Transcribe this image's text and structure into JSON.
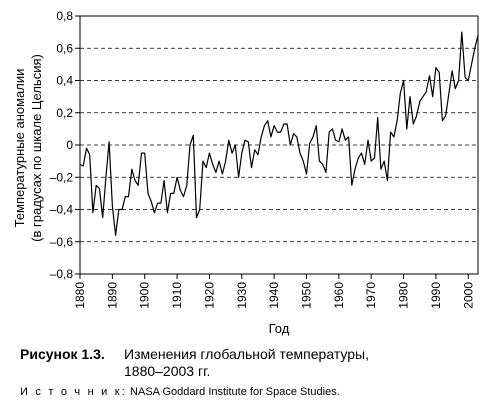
{
  "caption": {
    "number": "Рисунок 1.3.",
    "text": "Изменения глобальной температуры, 1880–2003 гг."
  },
  "source": {
    "label": "И с т о ч н и к:",
    "text": "NASA Goddard Institute for Space Studies."
  },
  "chart_data": {
    "type": "line",
    "title": "",
    "xlabel": "Год",
    "ylabel": "Температурные аномалии",
    "ylabel2": "(в градусах по шкале Цельсия)",
    "xlim": [
      1880,
      2003
    ],
    "ylim": [
      -0.8,
      0.8
    ],
    "xticks": [
      1880,
      1890,
      1900,
      1910,
      1920,
      1930,
      1940,
      1950,
      1960,
      1970,
      1980,
      1990,
      2000
    ],
    "yticks": [
      -0.8,
      -0.6,
      -0.4,
      -0.2,
      0,
      0.2,
      0.4,
      0.6,
      0.8
    ],
    "ytick_labels": [
      "–0,8",
      "–0,6",
      "–0,4",
      "–0,2",
      "0",
      "0,2",
      "0,4",
      "0,6",
      "0,8"
    ],
    "grid": "horizontal dashed",
    "series": [
      {
        "x": [
          1880,
          1881,
          1882,
          1883,
          1884,
          1885,
          1886,
          1887,
          1888,
          1889,
          1890,
          1891,
          1892,
          1893,
          1894,
          1895,
          1896,
          1897,
          1898,
          1899,
          1900,
          1901,
          1902,
          1903,
          1904,
          1905,
          1906,
          1907,
          1908,
          1909,
          1910,
          1911,
          1912,
          1913,
          1914,
          1915,
          1916,
          1917,
          1918,
          1919,
          1920,
          1921,
          1922,
          1923,
          1924,
          1925,
          1926,
          1927,
          1928,
          1929,
          1930,
          1931,
          1932,
          1933,
          1934,
          1935,
          1936,
          1937,
          1938,
          1939,
          1940,
          1941,
          1942,
          1943,
          1944,
          1945,
          1946,
          1947,
          1948,
          1949,
          1950,
          1951,
          1952,
          1953,
          1954,
          1955,
          1956,
          1957,
          1958,
          1959,
          1960,
          1961,
          1962,
          1963,
          1964,
          1965,
          1966,
          1967,
          1968,
          1969,
          1970,
          1971,
          1972,
          1973,
          1974,
          1975,
          1976,
          1977,
          1978,
          1979,
          1980,
          1981,
          1982,
          1983,
          1984,
          1985,
          1986,
          1987,
          1988,
          1989,
          1990,
          1991,
          1992,
          1993,
          1994,
          1995,
          1996,
          1997,
          1998,
          1999,
          2000,
          2001,
          2002,
          2003
        ],
        "y": [
          -0.12,
          -0.13,
          -0.02,
          -0.06,
          -0.42,
          -0.25,
          -0.27,
          -0.45,
          -0.2,
          0.02,
          -0.38,
          -0.56,
          -0.4,
          -0.4,
          -0.32,
          -0.32,
          -0.15,
          -0.22,
          -0.25,
          -0.05,
          -0.05,
          -0.3,
          -0.35,
          -0.42,
          -0.36,
          -0.36,
          -0.22,
          -0.42,
          -0.3,
          -0.3,
          -0.2,
          -0.28,
          -0.32,
          -0.25,
          0.0,
          0.06,
          -0.45,
          -0.4,
          -0.1,
          -0.14,
          -0.05,
          -0.12,
          -0.17,
          -0.1,
          -0.18,
          -0.1,
          0.03,
          -0.05,
          0.0,
          -0.2,
          -0.05,
          0.03,
          0.02,
          -0.14,
          -0.03,
          -0.06,
          0.05,
          0.12,
          0.15,
          0.05,
          0.12,
          0.08,
          0.08,
          0.13,
          0.13,
          0.0,
          0.07,
          0.05,
          -0.05,
          -0.1,
          -0.18,
          0.01,
          0.05,
          0.12,
          -0.1,
          -0.12,
          -0.17,
          0.08,
          0.1,
          0.03,
          0.02,
          0.1,
          0.03,
          0.05,
          -0.25,
          -0.15,
          -0.08,
          -0.05,
          -0.12,
          0.03,
          -0.1,
          -0.08,
          0.17,
          -0.15,
          -0.1,
          -0.22,
          0.08,
          0.05,
          0.15,
          0.32,
          0.4,
          0.1,
          0.3,
          0.13,
          0.18,
          0.27,
          0.3,
          0.33,
          0.43,
          0.3,
          0.48,
          0.45,
          0.15,
          0.18,
          0.32,
          0.46,
          0.35,
          0.4,
          0.7,
          0.42,
          0.4,
          0.5,
          0.6,
          0.68
        ]
      }
    ]
  }
}
